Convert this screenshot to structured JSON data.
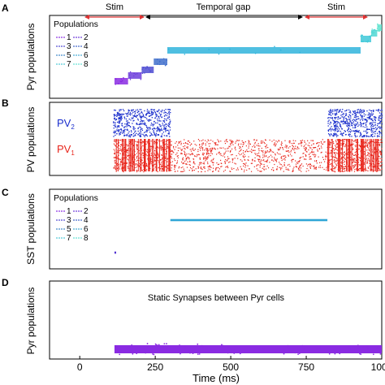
{
  "chart_data": [
    {
      "panel": "A",
      "type": "scatter",
      "ylabel": "Pyr populations",
      "xlim": [
        -100,
        1000
      ],
      "annotations": {
        "stim_left": "Stim",
        "gap": "Temporal gap",
        "stim_right": "Stim",
        "arrow_ranges": [
          [
            100,
            300
          ],
          [
            300,
            820
          ],
          [
            820,
            1000
          ]
        ]
      },
      "legend": {
        "title": "Populations",
        "entries": [
          {
            "label": "1",
            "color": "#8a2be2"
          },
          {
            "label": "2",
            "color": "#6a35d9"
          },
          {
            "label": "3",
            "color": "#4b44d0"
          },
          {
            "label": "4",
            "color": "#3c62c8"
          },
          {
            "label": "5",
            "color": "#3b86c9"
          },
          {
            "label": "6",
            "color": "#40a9d4"
          },
          {
            "label": "7",
            "color": "#4cc8d6"
          },
          {
            "label": "8",
            "color": "#5fe0d2"
          }
        ]
      },
      "series": [
        {
          "population": 1,
          "x_range": [
            115,
            160
          ],
          "color": "#8a2be2"
        },
        {
          "population": 2,
          "x_range": [
            160,
            205
          ],
          "color": "#6f3fdc"
        },
        {
          "population": 3,
          "x_range": [
            205,
            245
          ],
          "color": "#4f4ed2"
        },
        {
          "population": 4,
          "x_range": [
            245,
            290
          ],
          "color": "#3f6fcb"
        },
        {
          "population": 5,
          "x_range": [
            290,
            930
          ],
          "color": "#30b4dc"
        },
        {
          "population": 6,
          "x_range": [
            930,
            965
          ],
          "color": "#3ec8d8"
        },
        {
          "population": 7,
          "x_range": [
            965,
            985
          ],
          "color": "#50d7d4"
        },
        {
          "population": 8,
          "x_range": [
            985,
            1000
          ],
          "color": "#63e4d0"
        }
      ]
    },
    {
      "panel": "B",
      "type": "scatter",
      "ylabel": "PV populations",
      "xlim": [
        -100,
        1000
      ],
      "labels": {
        "pv2": "PV",
        "pv2_sub": "2",
        "pv1": "PV",
        "pv1_sub": "1"
      },
      "series": [
        {
          "name": "PV2",
          "color": "#1a2ecc",
          "segments": [
            [
              110,
              300
            ],
            [
              820,
              1000
            ]
          ]
        },
        {
          "name": "PV1",
          "color": "#e8261c",
          "segments": [
            [
              110,
              300
            ],
            [
              300,
              820
            ],
            [
              820,
              1000
            ]
          ]
        }
      ]
    },
    {
      "panel": "C",
      "type": "scatter",
      "ylabel": "SST populations",
      "xlim": [
        -100,
        1000
      ],
      "legend": {
        "title": "Populations",
        "entries": [
          {
            "label": "1",
            "color": "#8a2be2"
          },
          {
            "label": "2",
            "color": "#6a35d9"
          },
          {
            "label": "3",
            "color": "#4b44d0"
          },
          {
            "label": "4",
            "color": "#3c62c8"
          },
          {
            "label": "5",
            "color": "#3b86c9"
          },
          {
            "label": "6",
            "color": "#40a9d4"
          },
          {
            "label": "7",
            "color": "#4cc8d6"
          },
          {
            "label": "8",
            "color": "#5fe0d2"
          }
        ]
      },
      "series": [
        {
          "population": 1,
          "x_range": [
            115,
            120
          ],
          "color": "#4b2bcf"
        },
        {
          "population": 5,
          "x_range": [
            300,
            820
          ],
          "color": "#2fa6d6"
        }
      ]
    },
    {
      "panel": "D",
      "type": "scatter",
      "ylabel": "Pyr populations",
      "title": "Static Synapses between Pyr cells",
      "xlim": [
        -100,
        1000
      ],
      "xlabel": "Time (ms)",
      "xticks": [
        0,
        250,
        500,
        750,
        1000
      ],
      "series": [
        {
          "population": 1,
          "x_range": [
            115,
            1000
          ],
          "color": "#8a2be2"
        }
      ]
    }
  ]
}
